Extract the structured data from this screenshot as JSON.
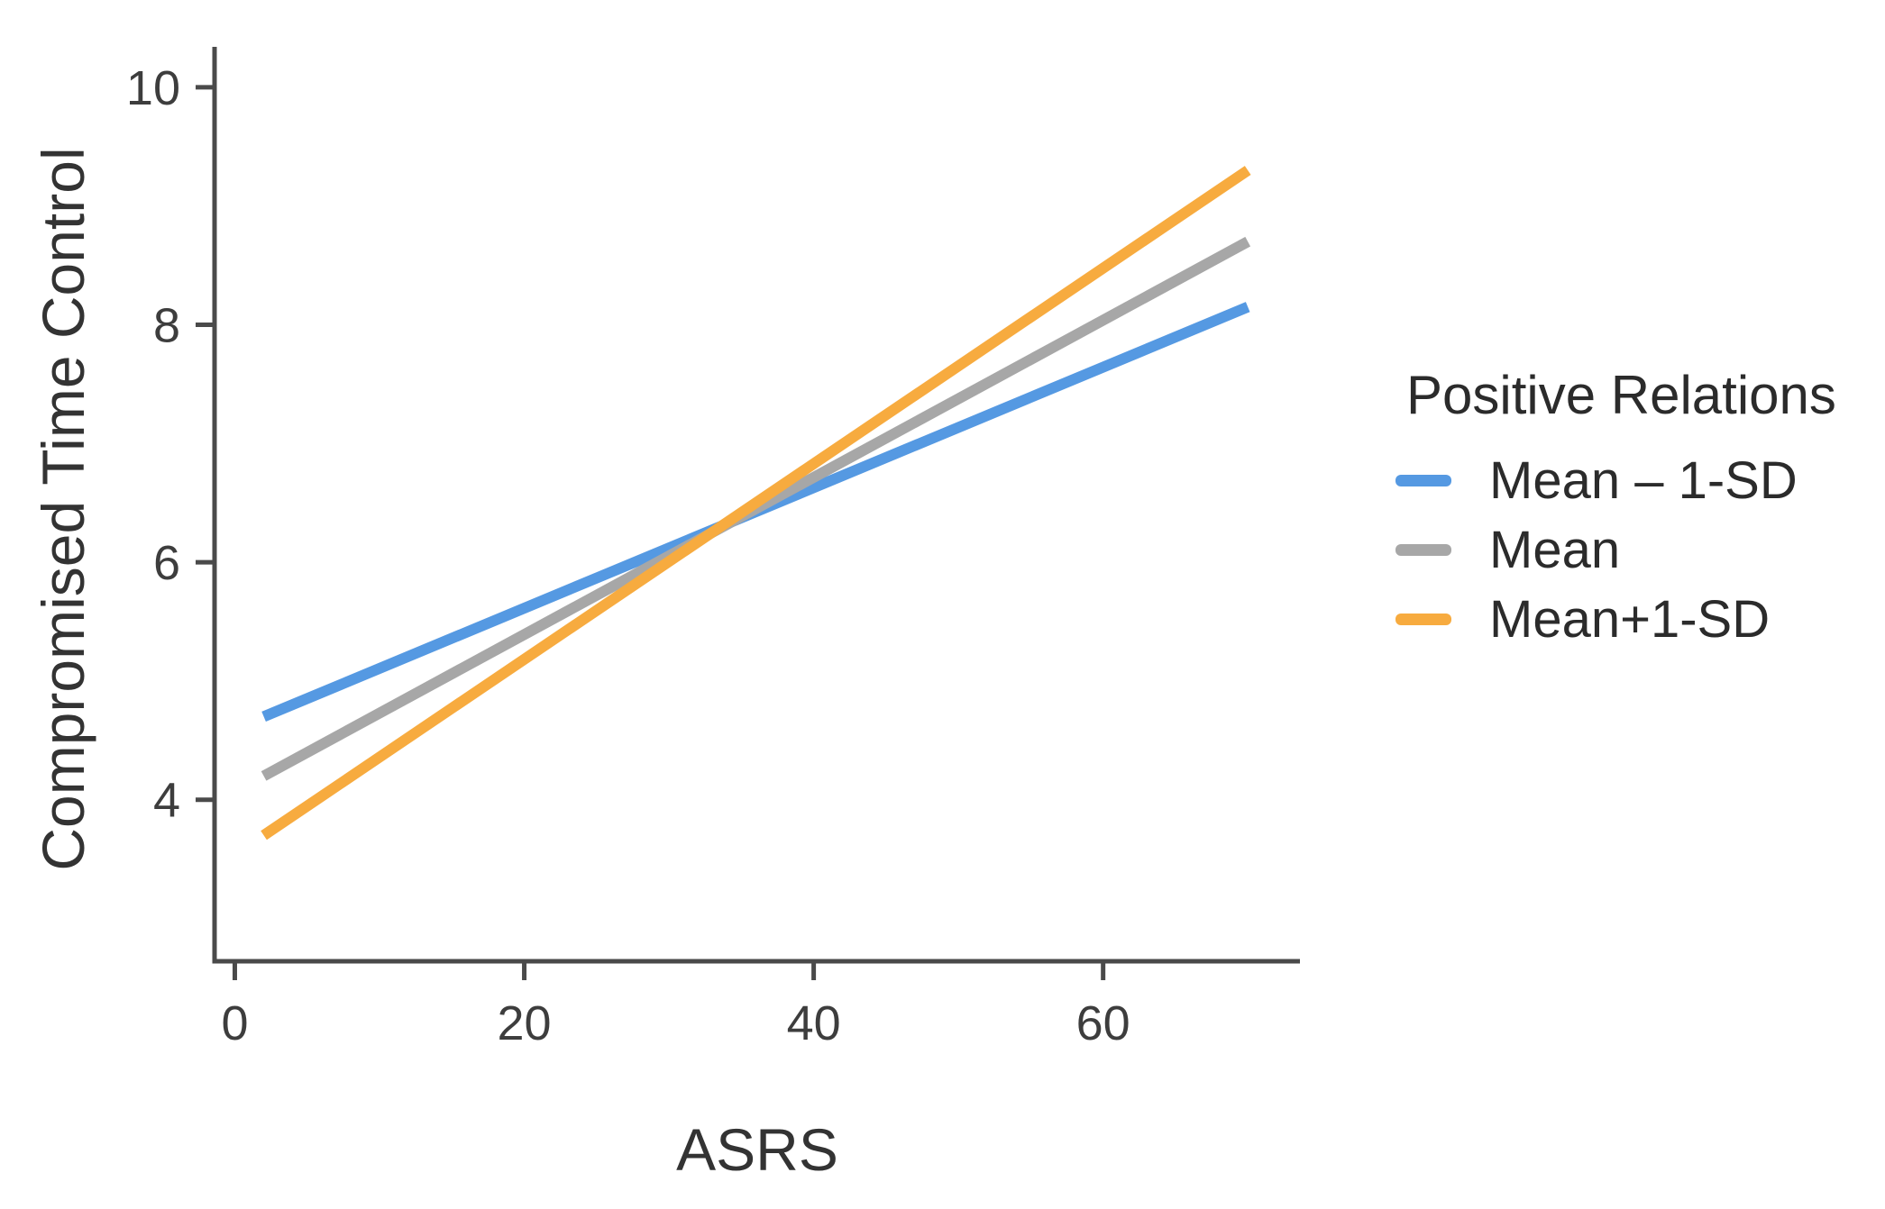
{
  "chart_data": {
    "type": "line",
    "title": "",
    "xlabel": "ASRS",
    "ylabel": "Compromised Time Control",
    "legend_title": "Positive Relations",
    "legend_position": "right",
    "grid": false,
    "x_ticks": [
      0,
      20,
      40,
      60
    ],
    "y_ticks": [
      4,
      6,
      8,
      10
    ],
    "xlim": [
      -1.4,
      73.6
    ],
    "ylim": [
      2.64,
      10.34
    ],
    "axis_color": "#4a4a4a",
    "tick_label_color": "#3d3d3d",
    "series": [
      {
        "name": "Mean – 1-SD",
        "color": "#5599E2",
        "x": [
          2,
          70
        ],
        "y": [
          4.7,
          8.15
        ]
      },
      {
        "name": "Mean",
        "color": "#A7A7A7",
        "x": [
          2,
          70
        ],
        "y": [
          4.2,
          8.7
        ]
      },
      {
        "name": "Mean+1-SD",
        "color": "#F7AB3F",
        "x": [
          2,
          70
        ],
        "y": [
          3.7,
          9.3
        ]
      }
    ]
  }
}
